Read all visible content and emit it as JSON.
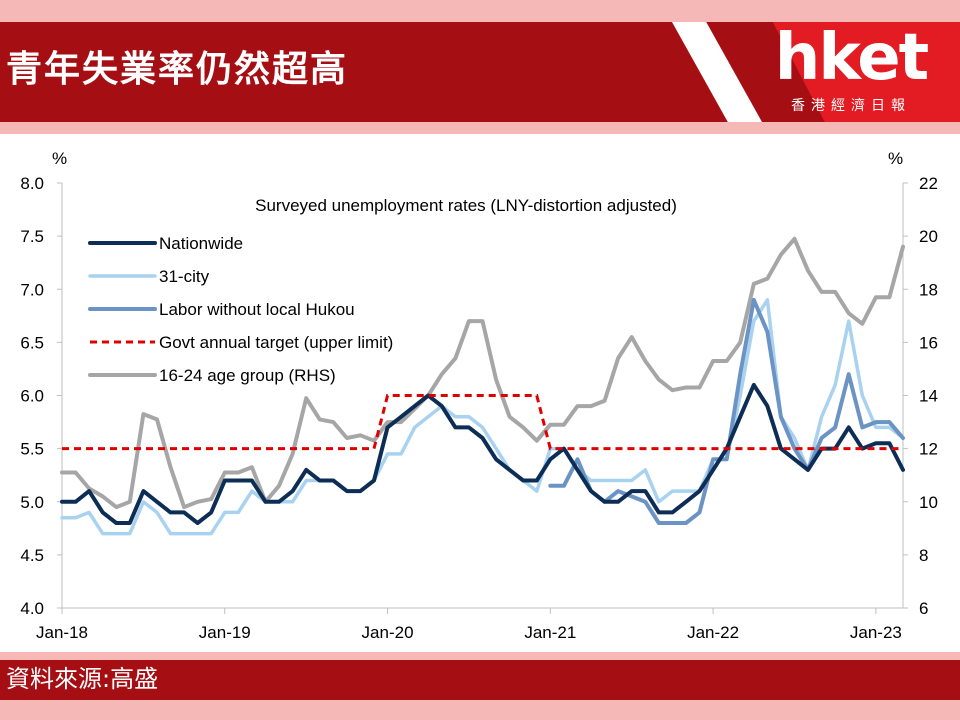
{
  "header": {
    "title": "青年失業率仍然超高",
    "logo_text": "hket",
    "logo_sub": "香港經濟日報"
  },
  "footer": {
    "source": "資料來源:高盛"
  },
  "colors": {
    "banner": "#a50f14",
    "logo_red": "#e31b23",
    "nationwide": "#0c2d55",
    "city31": "#a9d2f0",
    "labor": "#6b93c4",
    "target": "#e00000",
    "youth": "#a6a6a6"
  },
  "chart_data": {
    "type": "line",
    "title": "Surveyed unemployment rates (LNY-distortion adjusted)",
    "left_unit": "%",
    "right_unit": "%",
    "ylim": [
      4.0,
      8.0
    ],
    "yticks": [
      "8.0",
      "7.5",
      "7.0",
      "6.5",
      "6.0",
      "5.5",
      "5.0",
      "4.5",
      "4.0"
    ],
    "ylim_right": [
      6,
      22
    ],
    "yticks_right": [
      "22",
      "20",
      "18",
      "16",
      "14",
      "12",
      "10",
      "8",
      "6"
    ],
    "x_range": [
      "Jan-18",
      "Mar-23"
    ],
    "xticks": [
      "Jan-18",
      "Jan-19",
      "Jan-20",
      "Jan-21",
      "Jan-22",
      "Jan-23"
    ],
    "grid": false,
    "legend_position": "top-left",
    "series": [
      {
        "name": "Nationwide",
        "axis": "left",
        "style": "solid",
        "start": "Jan-18",
        "values": [
          5.0,
          5.0,
          5.1,
          4.9,
          4.8,
          4.8,
          5.1,
          5.0,
          4.9,
          4.9,
          4.8,
          4.9,
          5.2,
          5.2,
          5.2,
          5.0,
          5.0,
          5.1,
          5.3,
          5.2,
          5.2,
          5.1,
          5.1,
          5.2,
          5.7,
          5.8,
          5.9,
          6.0,
          5.9,
          5.7,
          5.7,
          5.6,
          5.4,
          5.3,
          5.2,
          5.2,
          5.4,
          5.5,
          5.3,
          5.1,
          5.0,
          5.0,
          5.1,
          5.1,
          4.9,
          4.9,
          5.0,
          5.1,
          5.3,
          5.5,
          5.8,
          6.1,
          5.9,
          5.5,
          5.4,
          5.3,
          5.5,
          5.5,
          5.7,
          5.5,
          5.55,
          5.55,
          5.3
        ]
      },
      {
        "name": "31-city",
        "axis": "left",
        "style": "solid",
        "start": "Jan-18",
        "values": [
          4.85,
          4.85,
          4.9,
          4.7,
          4.7,
          4.7,
          5.0,
          4.9,
          4.7,
          4.7,
          4.7,
          4.7,
          4.9,
          4.9,
          5.1,
          5.0,
          5.0,
          5.0,
          5.2,
          5.2,
          5.2,
          5.1,
          5.1,
          5.2,
          5.45,
          5.45,
          5.7,
          5.8,
          5.9,
          5.8,
          5.8,
          5.7,
          5.5,
          5.3,
          5.2,
          5.1,
          5.5,
          5.5,
          5.3,
          5.2,
          5.2,
          5.2,
          5.2,
          5.3,
          5.0,
          5.1,
          5.1,
          5.1,
          5.4,
          5.4,
          6.0,
          6.7,
          6.9,
          5.8,
          5.6,
          5.3,
          5.8,
          6.1,
          6.7,
          6.0,
          5.7,
          5.7,
          5.6
        ]
      },
      {
        "name": "Labor without local Hukou",
        "axis": "left",
        "style": "solid",
        "start": "Jan-21",
        "values": [
          5.15,
          5.15,
          5.4,
          5.1,
          5.0,
          5.1,
          5.05,
          5.0,
          4.8,
          4.8,
          4.8,
          4.9,
          5.4,
          5.4,
          6.2,
          6.9,
          6.6,
          5.8,
          5.5,
          5.3,
          5.6,
          5.7,
          6.2,
          5.7,
          5.75,
          5.75,
          5.6
        ]
      },
      {
        "name": "Govt annual target (upper limit)",
        "axis": "left",
        "style": "dashed",
        "segments": [
          {
            "from": "Jan-18",
            "to": "Dec-19",
            "value": 5.5
          },
          {
            "from": "Jan-20",
            "to": "Dec-20",
            "value": 6.0
          },
          {
            "from": "Jan-21",
            "to": "Mar-23",
            "value": 5.5
          }
        ]
      },
      {
        "name": "16-24 age group (RHS)",
        "axis": "right",
        "style": "solid",
        "start": "Jan-18",
        "values": [
          11.1,
          11.1,
          10.5,
          10.2,
          9.8,
          10.0,
          13.3,
          13.1,
          11.3,
          9.8,
          10.0,
          10.1,
          11.1,
          11.1,
          11.3,
          10.0,
          10.6,
          11.8,
          13.9,
          13.1,
          13.0,
          12.4,
          12.5,
          12.3,
          13.0,
          13.0,
          13.5,
          14.0,
          14.8,
          15.4,
          16.8,
          16.8,
          14.6,
          13.2,
          12.8,
          12.3,
          12.9,
          12.9,
          13.6,
          13.6,
          13.8,
          15.4,
          16.2,
          15.3,
          14.6,
          14.2,
          14.3,
          14.3,
          15.3,
          15.3,
          16.0,
          18.2,
          18.4,
          19.3,
          19.9,
          18.7,
          17.9,
          17.9,
          17.1,
          16.7,
          17.7,
          17.7,
          19.6
        ]
      }
    ]
  }
}
